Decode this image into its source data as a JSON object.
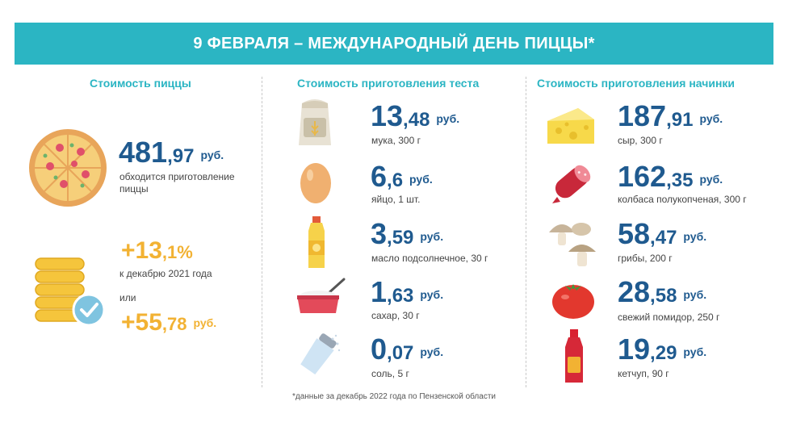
{
  "banner": {
    "title": "9 ФЕВРАЛЯ – МЕЖДУНАРОДНЫЙ ДЕНЬ ПИЦЦЫ*"
  },
  "columns": {
    "pizza": "Стоимость пиццы",
    "dough": "Стоимость приготовления теста",
    "filling": "Стоимость приготовления начинки"
  },
  "pizza": {
    "price_int": "481",
    "price_frac": ",97",
    "currency": "руб.",
    "desc_line1": "обходится приготовление",
    "desc_line2": "пиццы",
    "growth_int": "+13",
    "growth_frac": ",1%",
    "growth_desc": "к декабрю 2021 года",
    "or_label": "или",
    "abs_int": "+55",
    "abs_frac": ",78",
    "abs_currency": "руб."
  },
  "dough": [
    {
      "int": "13",
      "frac": ",48",
      "currency": "руб.",
      "label": "мука, 300 г",
      "icon": "flour-bag-icon"
    },
    {
      "int": "6",
      "frac": ",6",
      "currency": "руб.",
      "label": "яйцо, 1 шт.",
      "icon": "egg-icon"
    },
    {
      "int": "3",
      "frac": ",59",
      "currency": "руб.",
      "label": "масло подсолнечное, 30 г",
      "icon": "oil-bottle-icon"
    },
    {
      "int": "1",
      "frac": ",63",
      "currency": "руб.",
      "label": "сахар, 30 г",
      "icon": "sugar-bowl-icon"
    },
    {
      "int": "0",
      "frac": ",07",
      "currency": "руб.",
      "label": "соль, 5 г",
      "icon": "salt-shaker-icon"
    }
  ],
  "filling": [
    {
      "int": "187",
      "frac": ",91",
      "currency": "руб.",
      "label": "сыр, 300 г",
      "icon": "cheese-icon"
    },
    {
      "int": "162",
      "frac": ",35",
      "currency": "руб.",
      "label": "колбаса полукопченая, 300 г",
      "icon": "sausage-icon"
    },
    {
      "int": "58",
      "frac": ",47",
      "currency": "руб.",
      "label": "грибы, 200 г",
      "icon": "mushrooms-icon"
    },
    {
      "int": "28",
      "frac": ",58",
      "currency": "руб.",
      "label": "свежий помидор, 250 г",
      "icon": "tomato-icon"
    },
    {
      "int": "19",
      "frac": ",29",
      "currency": "руб.",
      "label": "кетчуп, 90 г",
      "icon": "ketchup-icon"
    }
  ],
  "footnote": "*данные за декабрь 2022 года по Пензенской области",
  "colors": {
    "accent": "#2bb5c3",
    "value_blue": "#1f5a8f",
    "value_gold": "#f2b233"
  }
}
